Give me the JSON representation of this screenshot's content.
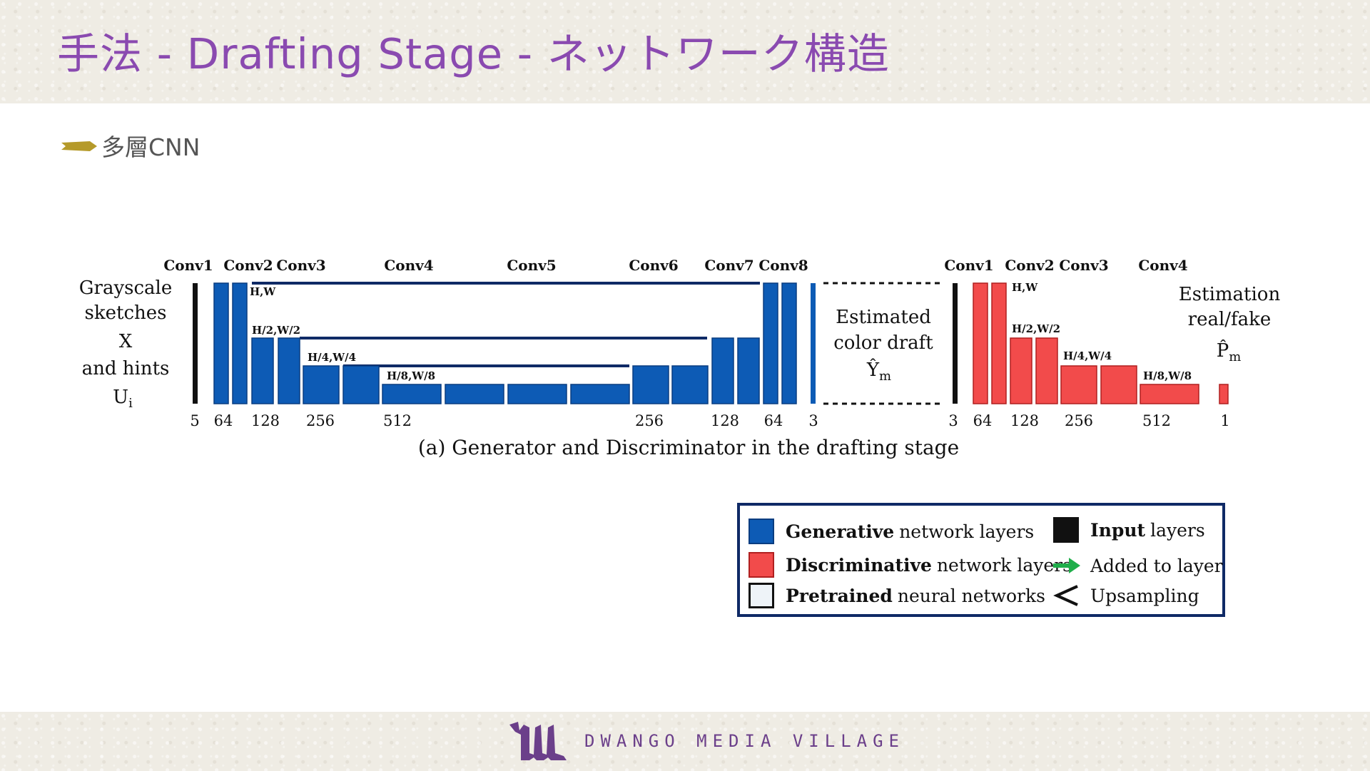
{
  "slide": {
    "title": "手法 - Drafting Stage - ネットワーク構造",
    "bullet": "多層CNN",
    "footer_brand": "DWANGO MEDIA VILLAGE",
    "colors": {
      "title": "#8a4ab0",
      "generative": "#0d5bb5",
      "discriminative": "#f24b4b",
      "input": "#111111",
      "legend_border": "#0f2a66",
      "bullet": "#b59a2a"
    }
  },
  "diagram": {
    "input_label": {
      "line1": "Grayscale",
      "line2": "sketches",
      "x": "X",
      "line4": "and hints",
      "u": "U",
      "u_sub": "i"
    },
    "generator": {
      "convs": [
        "Conv1",
        "Conv2",
        "Conv3",
        "Conv4",
        "Conv5",
        "Conv6",
        "Conv7",
        "Conv8"
      ],
      "channels": [
        "5",
        "64",
        "128",
        "256",
        "512",
        "256",
        "128",
        "64",
        "3"
      ],
      "dims": [
        "H,W",
        "H/2,W/2",
        "H/4,W/4",
        "H/8,W/8"
      ]
    },
    "draft_label": {
      "line1": "Estimated",
      "line2": "color draft",
      "y": "Ŷ",
      "y_sub": "m"
    },
    "discriminator": {
      "convs": [
        "Conv1",
        "Conv2",
        "Conv3",
        "Conv4"
      ],
      "channels": [
        "3",
        "64",
        "128",
        "256",
        "512",
        "1"
      ],
      "dims": [
        "H,W",
        "H/2,W/2",
        "H/4,W/4",
        "H/8,W/8"
      ]
    },
    "output_label": {
      "line1": "Estimation",
      "line2": "real/fake",
      "p": "P̂",
      "p_sub": "m"
    },
    "caption": "(a) Generator and Discriminator in the drafting stage"
  },
  "legend": {
    "generative": {
      "bold": "Generative",
      "rest": "network layers"
    },
    "discriminative": {
      "bold": "Discriminative",
      "rest": "network layers"
    },
    "pretrained": {
      "bold": "Pretrained",
      "rest": "neural networks"
    },
    "input": {
      "bold": "Input",
      "rest": "layers"
    },
    "added": "Added to layer",
    "upsampling": "Upsampling"
  }
}
